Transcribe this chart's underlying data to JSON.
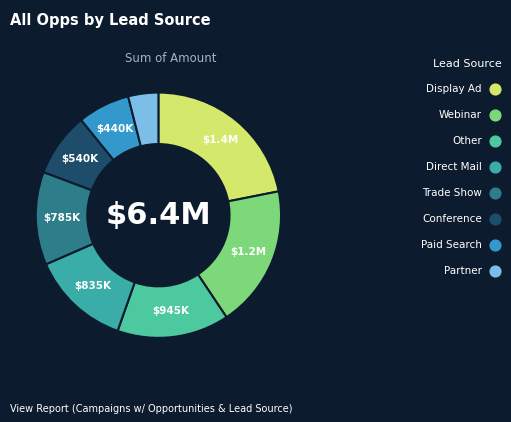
{
  "title": "All Opps by Lead Source",
  "subtitle": "Sum of Amount",
  "center_text": "$6.4M",
  "footer": "View Report (Campaigns w/ Opportunities & Lead Source)",
  "legend_title": "Lead Source",
  "background_color": "#0d1b2e",
  "text_color": "#ffffff",
  "slices": [
    {
      "label": "Display Ad",
      "value": 1400,
      "color": "#d4e96b"
    },
    {
      "label": "Webinar",
      "value": 1200,
      "color": "#7dd87a"
    },
    {
      "label": "Other",
      "value": 945,
      "color": "#4dc9a0"
    },
    {
      "label": "Direct Mail",
      "value": 835,
      "color": "#3aada8"
    },
    {
      "label": "Trade Show",
      "value": 785,
      "color": "#2d7d8a"
    },
    {
      "label": "Conference",
      "value": 540,
      "color": "#1e4d6b"
    },
    {
      "label": "Paid Search",
      "value": 440,
      "color": "#3399cc"
    },
    {
      "label": "Partner",
      "value": 254,
      "color": "#7bbfe8"
    }
  ],
  "label_texts": [
    "$1.4M",
    "$1.2M",
    "$945K",
    "$835K",
    "$785K",
    "$540K",
    "$440K",
    ""
  ],
  "donut_width": 0.42
}
